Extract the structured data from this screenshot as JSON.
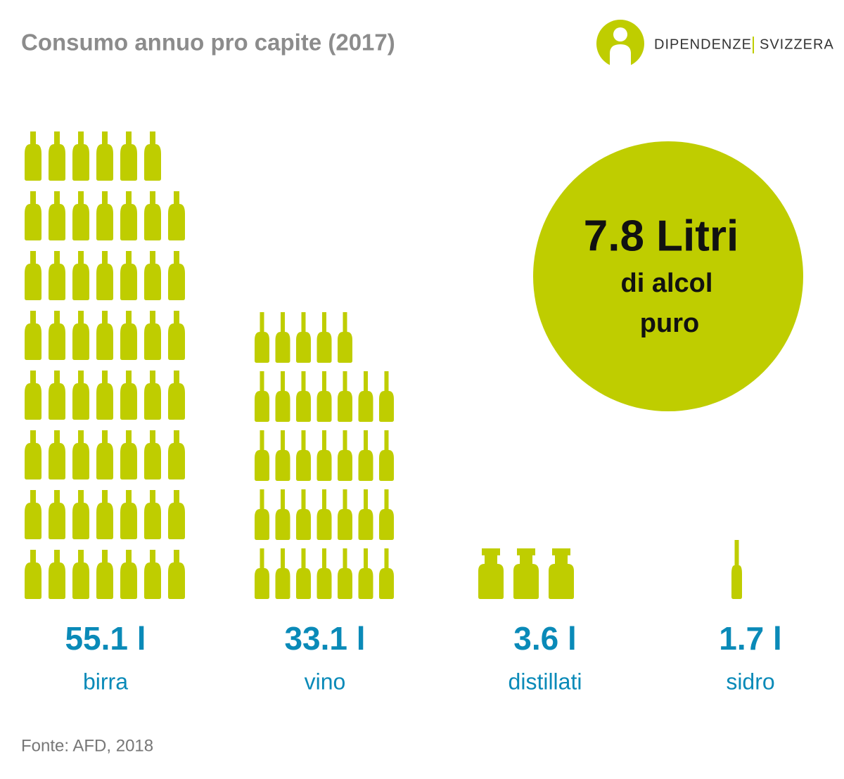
{
  "chart_data": {
    "type": "pictograph",
    "title": "Consumo annuo pro capite (2017)",
    "categories": [
      "birra",
      "vino",
      "distillati",
      "sidro"
    ],
    "values": [
      55.1,
      33.1,
      3.6,
      1.7
    ],
    "value_labels": [
      "55.1 l",
      "33.1 l",
      "3.6 l",
      "1.7 l"
    ],
    "color": "#bfcd00",
    "annotation": {
      "lines": [
        "7.8 Litri",
        "di alcol",
        "puro"
      ],
      "color": "#bfcd00"
    },
    "logo": {
      "left": "DIPENDENZE",
      "right": "SVIZZERA"
    },
    "source": "Fonte: AFD, 2018"
  }
}
